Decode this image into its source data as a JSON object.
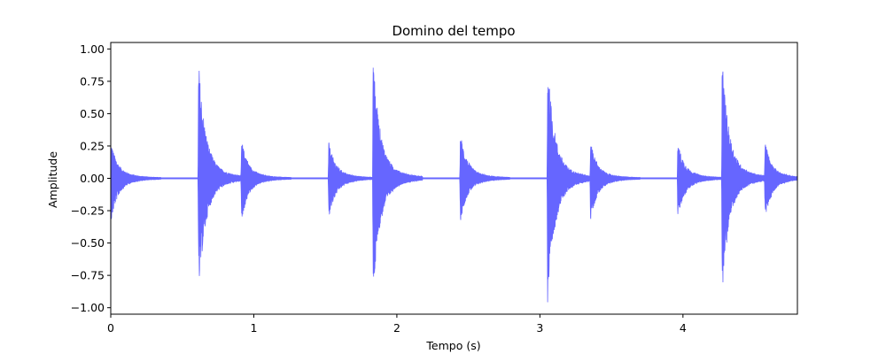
{
  "chart_data": {
    "type": "line",
    "title": "Domino del tempo",
    "xlabel": "Tempo (s)",
    "ylabel": "Amplitude",
    "xlim": [
      0,
      4.8
    ],
    "ylim": [
      -1.05,
      1.05
    ],
    "x_ticks": [
      0,
      1,
      2,
      3,
      4
    ],
    "x_tick_labels": [
      "0",
      "1",
      "2",
      "3",
      "4"
    ],
    "y_ticks": [
      1.0,
      0.75,
      0.5,
      0.25,
      0.0,
      -0.25,
      -0.5,
      -0.75,
      -1.0
    ],
    "y_tick_labels": [
      "1.00",
      "0.75",
      "0.50",
      "0.25",
      "0.00",
      "−0.25",
      "−0.50",
      "−0.75",
      "−1.00"
    ],
    "grid": false,
    "series": [
      {
        "color": "#6666ff",
        "onsets": [
          {
            "t": 0.0,
            "peak": 0.27,
            "neg": -0.33
          },
          {
            "t": 0.61,
            "peak": 0.91,
            "neg": -0.91
          },
          {
            "t": 0.91,
            "peak": 0.28,
            "neg": -0.32
          },
          {
            "t": 1.52,
            "peak": 0.28,
            "neg": -0.32
          },
          {
            "t": 1.83,
            "peak": 0.94,
            "neg": -0.93
          },
          {
            "t": 2.44,
            "peak": 0.35,
            "neg": -0.34
          },
          {
            "t": 3.05,
            "peak": 0.9,
            "neg": -1.0
          },
          {
            "t": 3.35,
            "peak": 0.27,
            "neg": -0.32
          },
          {
            "t": 3.96,
            "peak": 0.28,
            "neg": -0.32
          },
          {
            "t": 4.27,
            "peak": 0.91,
            "neg": -0.91
          },
          {
            "t": 4.57,
            "peak": 0.27,
            "neg": -0.3
          }
        ]
      }
    ]
  }
}
